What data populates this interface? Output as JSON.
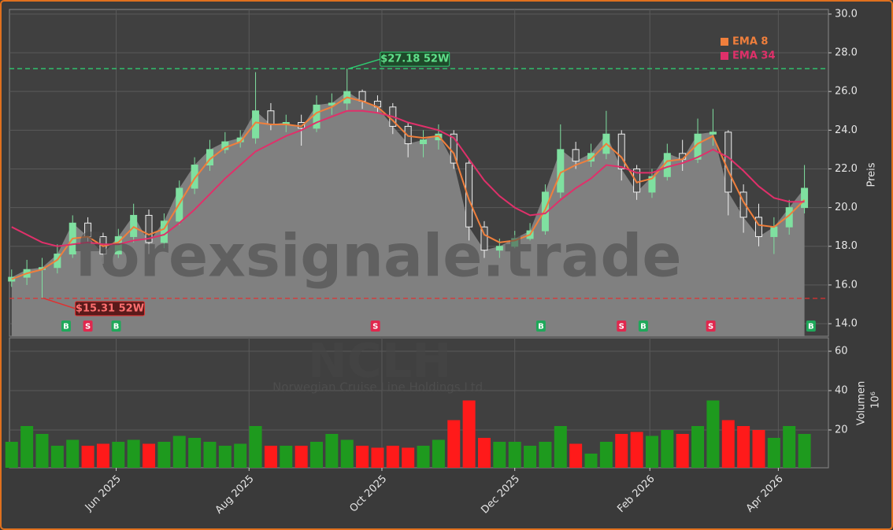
{
  "chart_data": {
    "type": "candlestick",
    "watermark": "forexsignale.trade",
    "symbol": "NCLH",
    "company": "Norwegian Cruise Line Holdings Ltd.",
    "x": [
      "2025-04-14",
      "2025-04-21",
      "2025-04-28",
      "2025-05-05",
      "2025-05-12",
      "2025-05-19",
      "2025-05-26",
      "2025-06-02",
      "2025-06-09",
      "2025-06-16",
      "2025-06-23",
      "2025-06-30",
      "2025-07-07",
      "2025-07-14",
      "2025-07-21",
      "2025-07-28",
      "2025-08-04",
      "2025-08-11",
      "2025-08-18",
      "2025-08-25",
      "2025-09-01",
      "2025-09-08",
      "2025-09-15",
      "2025-09-22",
      "2025-09-29",
      "2025-10-06",
      "2025-10-13",
      "2025-10-20",
      "2025-10-27",
      "2025-11-03",
      "2025-11-10",
      "2025-11-17",
      "2025-11-24",
      "2025-12-01",
      "2025-12-08",
      "2025-12-15",
      "2025-12-22",
      "2025-12-29",
      "2026-01-05",
      "2026-01-12",
      "2026-01-19",
      "2026-01-26",
      "2026-02-02",
      "2026-02-09",
      "2026-02-16",
      "2026-02-23",
      "2026-03-02",
      "2026-03-09",
      "2026-03-16",
      "2026-03-23",
      "2026-03-30",
      "2026-04-06",
      "2026-04-13"
    ],
    "open": [
      16.2,
      16.4,
      16.8,
      16.9,
      17.6,
      19.2,
      18.5,
      17.6,
      18.5,
      19.6,
      18.2,
      19.3,
      21.0,
      22.2,
      23.0,
      23.4,
      23.6,
      25.0,
      24.3,
      24.4,
      24.1,
      25.3,
      25.4,
      26.0,
      25.5,
      25.2,
      24.2,
      23.3,
      23.5,
      23.8,
      22.3,
      19.0,
      17.8,
      18.0,
      18.4,
      18.8,
      20.8,
      23.0,
      22.4,
      22.8,
      23.8,
      22.0,
      20.8,
      21.6,
      22.8,
      22.5,
      23.8,
      23.9,
      20.8,
      19.5,
      18.5,
      19.0,
      20.0
    ],
    "high": [
      16.8,
      17.3,
      17.4,
      18.1,
      19.6,
      19.5,
      18.7,
      18.9,
      20.2,
      19.9,
      19.7,
      21.4,
      22.6,
      23.5,
      23.9,
      24.0,
      27.0,
      25.4,
      24.8,
      24.8,
      25.8,
      25.9,
      27.18,
      26.1,
      25.8,
      25.4,
      24.4,
      24.0,
      24.3,
      24.0,
      22.5,
      19.3,
      18.4,
      18.8,
      19.2,
      21.2,
      24.3,
      23.4,
      23.3,
      25.0,
      24.0,
      22.2,
      22.0,
      23.3,
      23.5,
      24.6,
      25.1,
      24.0,
      21.2,
      20.2,
      19.5,
      20.4,
      22.2
    ],
    "low": [
      15.9,
      16.0,
      15.31,
      16.6,
      17.4,
      18.2,
      17.1,
      17.4,
      18.2,
      17.6,
      17.9,
      19.1,
      20.7,
      21.9,
      22.8,
      23.1,
      23.3,
      24.0,
      23.9,
      23.2,
      23.9,
      24.8,
      25.0,
      25.1,
      24.9,
      23.8,
      22.6,
      22.6,
      23.0,
      22.0,
      18.3,
      17.4,
      17.4,
      17.9,
      18.3,
      18.6,
      20.5,
      22.0,
      22.1,
      22.5,
      21.4,
      20.4,
      20.5,
      21.4,
      21.9,
      22.3,
      23.2,
      19.6,
      18.7,
      18.0,
      17.6,
      18.6,
      19.7
    ],
    "close": [
      16.4,
      16.8,
      16.9,
      17.6,
      19.2,
      18.5,
      17.6,
      18.5,
      19.6,
      18.2,
      19.3,
      21.0,
      22.2,
      23.0,
      23.4,
      23.6,
      25.0,
      24.3,
      24.4,
      24.1,
      25.3,
      25.4,
      26.0,
      25.5,
      25.2,
      24.2,
      23.3,
      23.5,
      23.8,
      22.3,
      19.0,
      17.8,
      18.0,
      18.4,
      18.8,
      20.8,
      23.0,
      22.4,
      22.8,
      23.8,
      22.0,
      20.8,
      21.6,
      22.8,
      22.5,
      23.8,
      23.9,
      20.8,
      19.5,
      18.5,
      19.0,
      20.0,
      21.0
    ],
    "up_color": "#7fe0a0",
    "down_color": "#f0f0f0",
    "fill_color": "#808080",
    "series": [
      {
        "name": "EMA 8",
        "color": "#f07f3c",
        "values": [
          16.3,
          16.6,
          16.8,
          17.3,
          18.4,
          18.5,
          18.0,
          18.2,
          19.0,
          18.6,
          18.9,
          20.2,
          21.5,
          22.5,
          23.1,
          23.4,
          24.4,
          24.3,
          24.3,
          24.2,
          24.9,
          25.2,
          25.7,
          25.5,
          25.2,
          24.5,
          23.7,
          23.6,
          23.7,
          22.8,
          20.4,
          18.6,
          18.2,
          18.3,
          18.6,
          19.9,
          21.8,
          22.2,
          22.5,
          23.3,
          22.6,
          21.3,
          21.5,
          22.4,
          22.5,
          23.3,
          23.7,
          21.9,
          20.3,
          19.1,
          19.0,
          19.6,
          20.4
        ]
      },
      {
        "name": "EMA 34",
        "color": "#e0306a",
        "values": [
          19.0,
          18.6,
          18.2,
          18.0,
          18.1,
          18.2,
          18.1,
          18.1,
          18.3,
          18.4,
          18.6,
          19.2,
          19.9,
          20.7,
          21.5,
          22.2,
          22.9,
          23.3,
          23.7,
          24.0,
          24.4,
          24.7,
          25.0,
          25.0,
          24.9,
          24.7,
          24.4,
          24.2,
          24.0,
          23.6,
          22.5,
          21.4,
          20.6,
          20.0,
          19.6,
          19.7,
          20.4,
          21.0,
          21.5,
          22.2,
          22.1,
          21.8,
          21.8,
          22.1,
          22.3,
          22.6,
          23.0,
          22.6,
          21.9,
          21.1,
          20.5,
          20.3,
          20.3
        ]
      }
    ],
    "legend": "upper right",
    "ylabel": "Preis",
    "ylim": [
      13.35,
      30.24
    ],
    "yticks": [
      {
        "value": 14,
        "label": "14.0"
      },
      {
        "value": 16,
        "label": "16.0"
      },
      {
        "value": 18,
        "label": "18.0"
      },
      {
        "value": 20,
        "label": "20.0"
      },
      {
        "value": 22,
        "label": "22.0"
      },
      {
        "value": 24,
        "label": "24.0"
      },
      {
        "value": 26,
        "label": "26.0"
      },
      {
        "value": 28,
        "label": "28.0"
      },
      {
        "value": 30,
        "label": "30.0"
      }
    ],
    "grid": true,
    "reference_lines": [
      {
        "value": 27.18,
        "label": "$27.18 52W",
        "color": "#2ecc71"
      },
      {
        "value": 15.31,
        "label": "$15.31 52W",
        "color": "#e03030"
      }
    ],
    "signals": {
      "x": [
        "2025-05-09",
        "2025-05-19",
        "2025-06-01",
        "2025-09-28",
        "2025-12-13",
        "2026-01-19",
        "2026-01-29",
        "2026-03-01",
        "2026-04-16"
      ],
      "labels": [
        "B",
        "S",
        "B",
        "S",
        "B",
        "S",
        "B",
        "S",
        "B"
      ],
      "buy_color": "#1fa85a",
      "sell_color": "#e0284e"
    },
    "xlim": [
      "2025-04-13",
      "2026-04-24"
    ],
    "xticks": [
      {
        "value": "2025-06-01",
        "label": "Jun 2025"
      },
      {
        "value": "2025-08-01",
        "label": "Aug 2025"
      },
      {
        "value": "2025-10-01",
        "label": "Oct 2025"
      },
      {
        "value": "2025-12-01",
        "label": "Dec 2025"
      },
      {
        "value": "2026-02-01",
        "label": "Feb 2026"
      },
      {
        "value": "2026-04-01",
        "label": "Apr 2026"
      }
    ],
    "volume": {
      "ylabel": "Volumen",
      "unit": "10⁶",
      "values": [
        14,
        22,
        18,
        12,
        15,
        12,
        13,
        14,
        15,
        13,
        14,
        17,
        16,
        14,
        12,
        13,
        22,
        12,
        12,
        12,
        14,
        18,
        15,
        12,
        11,
        12,
        11,
        12,
        15,
        25,
        35,
        16,
        14,
        14,
        12,
        14,
        22,
        13,
        8,
        14,
        18,
        19,
        17,
        20,
        18,
        22,
        35,
        25,
        22,
        20,
        16,
        22,
        18
      ],
      "ylim": [
        0.8,
        66.8
      ],
      "yticks": [
        20,
        40,
        60
      ],
      "up_color": "#1e9a1e",
      "down_color": "#ff1a1a"
    }
  }
}
